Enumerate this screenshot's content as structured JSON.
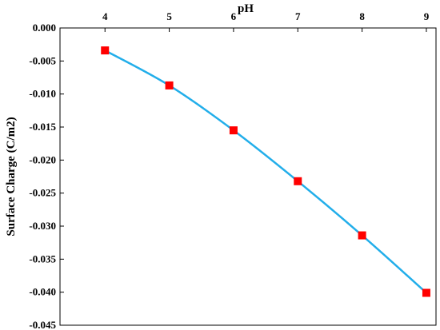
{
  "chart_data": {
    "type": "line",
    "xlabel": "pH",
    "ylabel": "Surface Charge (C/m2)",
    "x_axis_position": "top",
    "xlim": [
      3.3,
      9.15
    ],
    "ylim": [
      -0.045,
      0.0
    ],
    "x_ticks": [
      "4",
      "5",
      "6",
      "7",
      "8",
      "9"
    ],
    "y_ticks": [
      "0.000",
      "-0.005",
      "-0.010",
      "-0.015",
      "-0.020",
      "-0.025",
      "-0.030",
      "-0.035",
      "-0.040",
      "-0.045"
    ],
    "grid": false,
    "legend": "none",
    "series": [
      {
        "x": [
          4,
          5,
          6,
          7,
          8,
          9
        ],
        "y": [
          -0.0034,
          -0.0087,
          -0.0155,
          -0.0232,
          -0.0314,
          -0.0401
        ],
        "line_color": "#22aeea",
        "marker": "square",
        "marker_color": "#ff0000"
      }
    ]
  }
}
